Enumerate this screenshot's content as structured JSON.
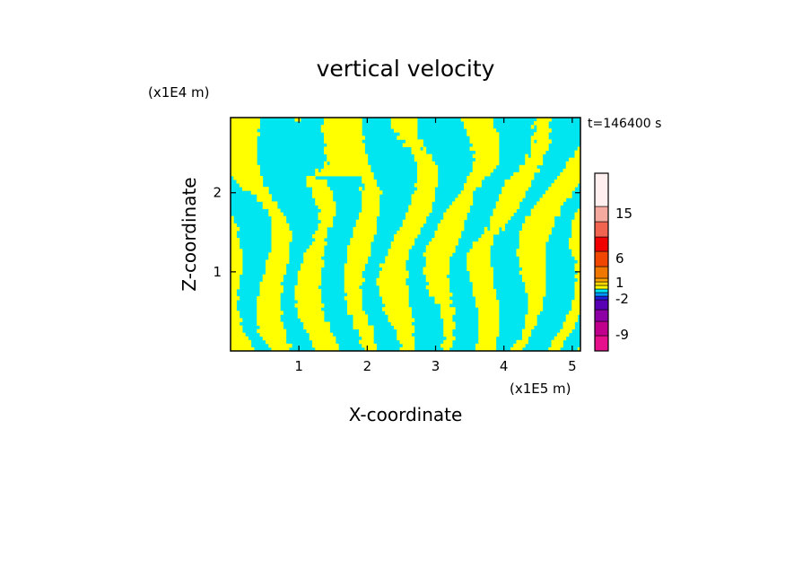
{
  "chart_data": {
    "type": "heatmap",
    "title": "vertical velocity",
    "xlabel": "X-coordinate",
    "ylabel": "Z-coordinate",
    "x_unit": "(x1E5 m)",
    "y_unit": "(x1E4 m)",
    "time_label": "t=146400 s",
    "xlim": [
      0,
      5.12
    ],
    "ylim": [
      0,
      2.95
    ],
    "x_ticks": [
      1,
      2,
      3,
      4,
      5
    ],
    "y_ticks": [
      1,
      2
    ],
    "colorbar": {
      "levels": [
        {
          "color": "#e6108c",
          "range": "< -9"
        },
        {
          "color": "#c0008c",
          "range": ""
        },
        {
          "color": "#8c00a6",
          "range": ""
        },
        {
          "color": "#5a00b4",
          "range": ""
        },
        {
          "color": "#1e1edc",
          "range": ""
        },
        {
          "color": "#0096ff",
          "range": ""
        },
        {
          "color": "#00e6f0",
          "range": "-1 to 0"
        },
        {
          "color": "#ffff00",
          "range": "0 to 1"
        },
        {
          "color": "#ffd700",
          "range": ""
        },
        {
          "color": "#ffa500",
          "range": ""
        },
        {
          "color": "#f07800",
          "range": ""
        },
        {
          "color": "#f04600",
          "range": ""
        },
        {
          "color": "#f00000",
          "range": ""
        },
        {
          "color": "#f06450",
          "range": ""
        },
        {
          "color": "#f5aaa0",
          "range": ""
        },
        {
          "color": "#fff0ef",
          "range": "> 15"
        }
      ],
      "tick_labels": [
        "15",
        "6",
        "1",
        "-2",
        "-9"
      ]
    },
    "field_colors": {
      "negative": "#00e6f0",
      "positive": "#ffff00"
    },
    "legend": "colorbar right"
  }
}
